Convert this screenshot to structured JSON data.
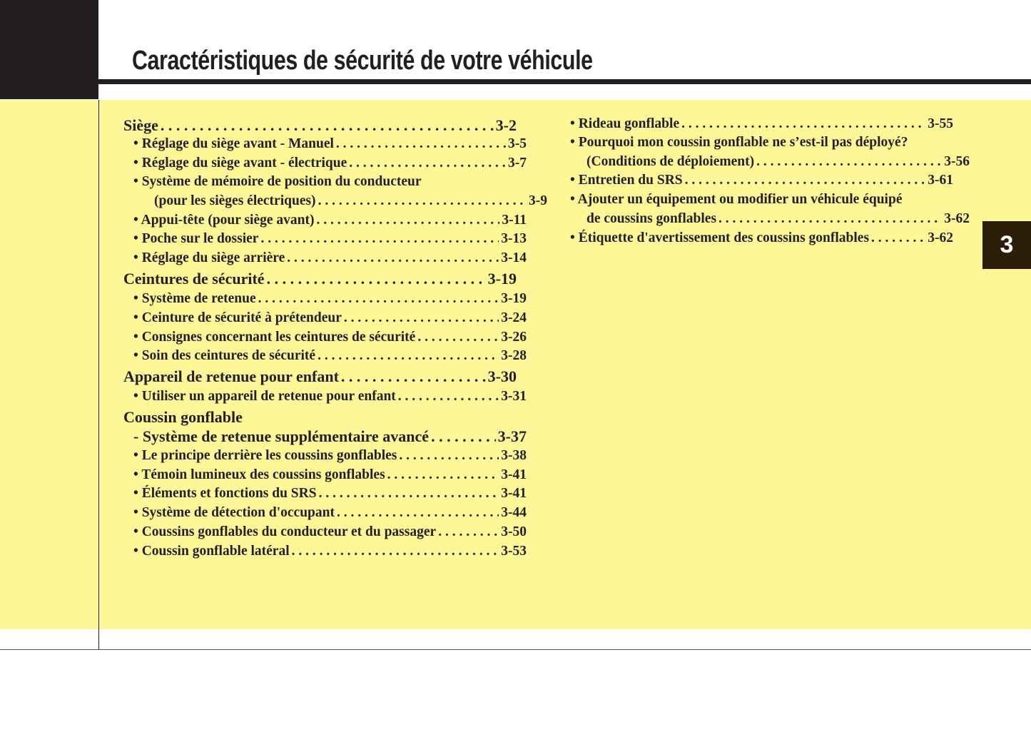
{
  "title": "Caractéristiques de sécurité de votre véhicule",
  "chapter_tab": "3",
  "left_column": [
    {
      "label": "Siège",
      "page": "3-2",
      "level": "h"
    },
    {
      "label": "• Réglage du siège avant - Manuel",
      "page": "3-5",
      "level": "sub"
    },
    {
      "label": "• Réglage du siège avant - électrique",
      "page": "3-7",
      "level": "sub"
    },
    {
      "label": "• Système de mémoire de position du conducteur",
      "page": "",
      "level": "sub"
    },
    {
      "label": "(pour les sièges électriques)",
      "page": "3-9",
      "level": "cont"
    },
    {
      "label": "• Appui-tête (pour siège avant)",
      "page": "3-11",
      "level": "sub"
    },
    {
      "label": "• Poche sur le dossier",
      "page": "3-13",
      "level": "sub"
    },
    {
      "label": "• Réglage du siège arrière",
      "page": "3-14",
      "level": "sub"
    },
    {
      "label": "Ceintures de sécurité",
      "page": "3-19",
      "level": "h"
    },
    {
      "label": "• Système de retenue",
      "page": "3-19",
      "level": "sub"
    },
    {
      "label": "• Ceinture de sécurité à prétendeur",
      "page": "3-24",
      "level": "sub"
    },
    {
      "label": "• Consignes concernant les ceintures de sécurité",
      "page": "3-26",
      "level": "sub"
    },
    {
      "label": "• Soin des ceintures de sécurité",
      "page": "3-28",
      "level": "sub"
    },
    {
      "label": "Appareil de retenue pour enfant",
      "page": "3-30",
      "level": "h"
    },
    {
      "label": "• Utiliser un appareil de retenue pour enfant",
      "page": "3-31",
      "level": "sub"
    },
    {
      "label": "Coussin gonflable",
      "page": "",
      "level": "h"
    },
    {
      "label": "- Système de retenue supplémentaire avancé",
      "page": "3-37",
      "level": "hsub"
    },
    {
      "label": "• Le principe derrière les coussins gonflables",
      "page": "3-38",
      "level": "sub"
    },
    {
      "label": "• Témoin lumineux des coussins gonflables",
      "page": "3-41",
      "level": "sub"
    },
    {
      "label": "• Éléments et fonctions du SRS",
      "page": "3-41",
      "level": "sub"
    },
    {
      "label": "• Système de détection d'occupant",
      "page": "3-44",
      "level": "sub"
    },
    {
      "label": "• Coussins gonflables du conducteur et du passager",
      "page": "3-50",
      "level": "sub"
    },
    {
      "label": "• Coussin gonflable latéral",
      "page": "3-53",
      "level": "sub"
    }
  ],
  "right_column": [
    {
      "label": "• Rideau gonflable",
      "page": "3-55",
      "level": "sub"
    },
    {
      "label": "• Pourquoi mon coussin gonflable ne s’est-il pas déployé?",
      "page": "",
      "level": "sub"
    },
    {
      "label": "(Conditions de déploiement)",
      "page": "3-56",
      "level": "cont"
    },
    {
      "label": "• Entretien du SRS",
      "page": "3-61",
      "level": "sub"
    },
    {
      "label": "• Ajouter un équipement ou modifier un véhicule équipé",
      "page": "",
      "level": "sub"
    },
    {
      "label": "de coussins gonflables",
      "page": "3-62",
      "level": "cont"
    },
    {
      "label": "• Étiquette d'avertissement des coussins gonflables",
      "page": "3-62",
      "level": "sub"
    }
  ]
}
